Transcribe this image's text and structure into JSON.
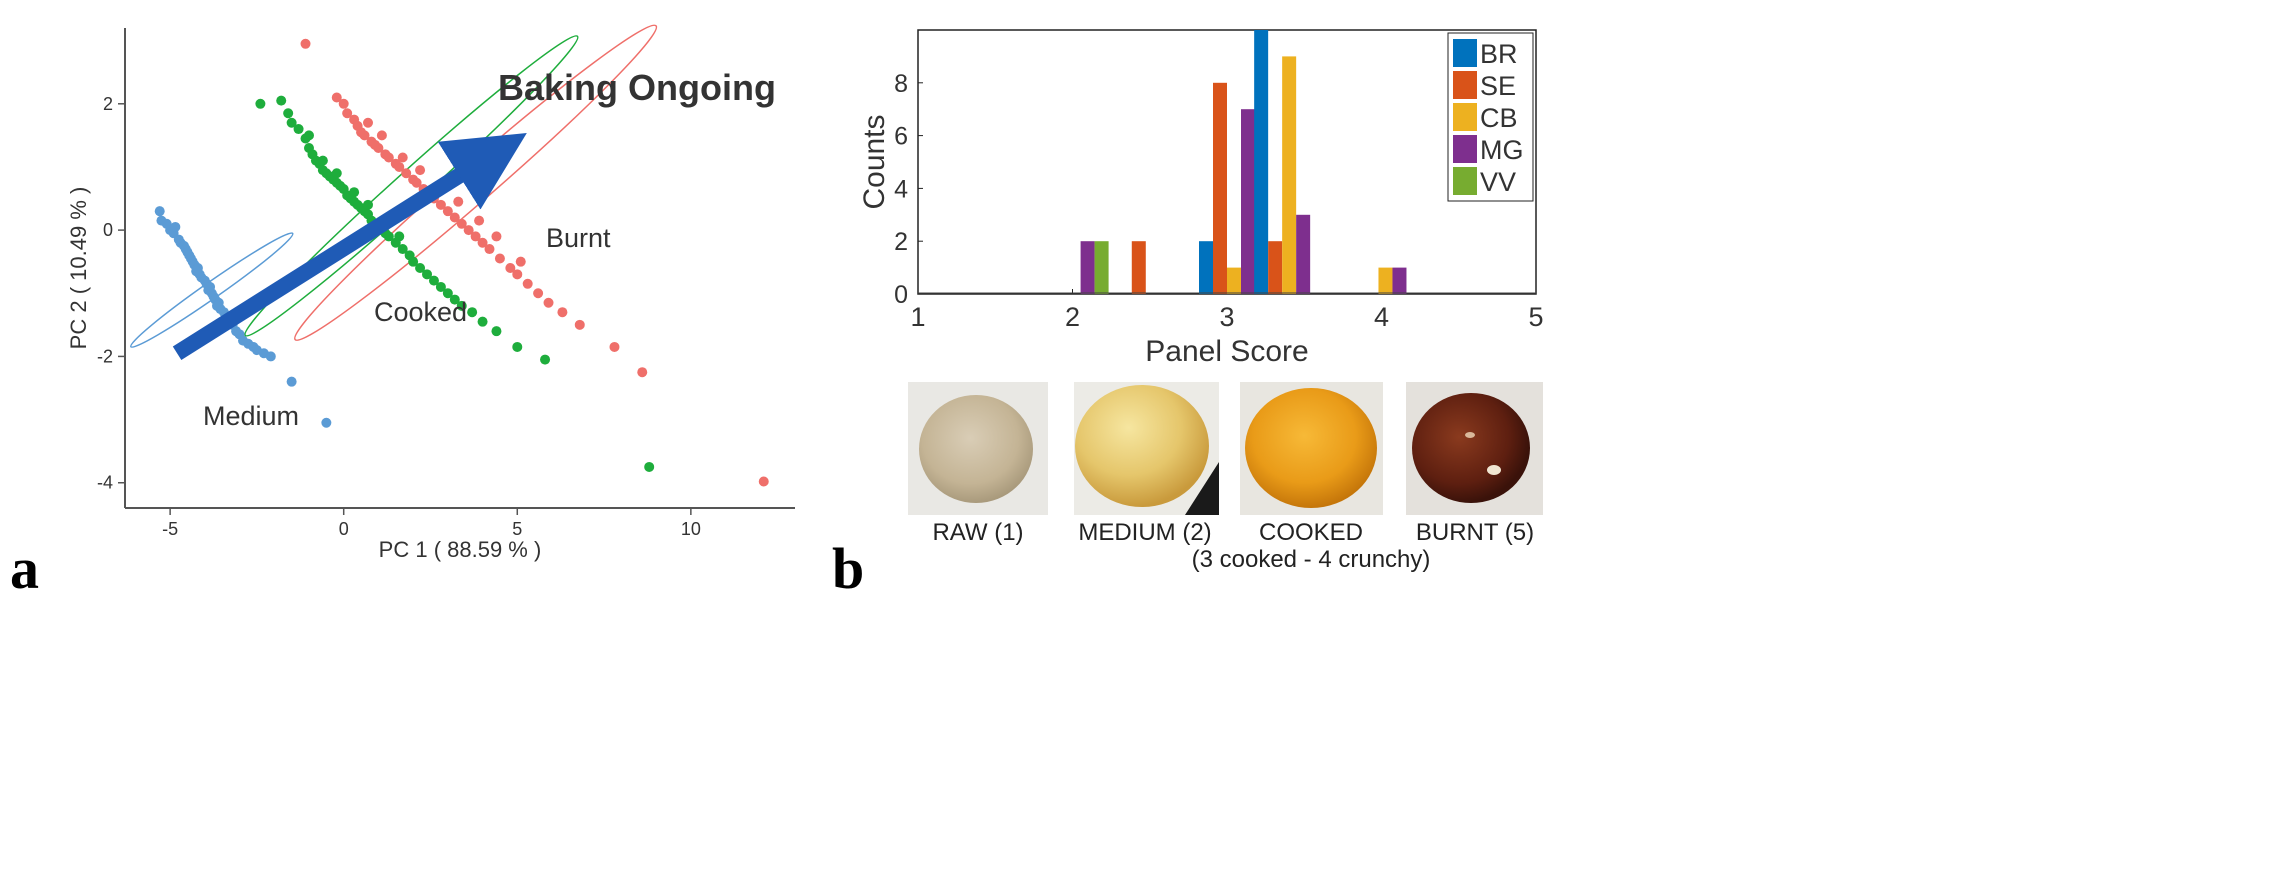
{
  "panels": {
    "a_label": "a",
    "b_label": "b"
  },
  "chart_data": [
    {
      "type": "scatter",
      "xlabel": "PC 1  ( 88.59 % )",
      "ylabel": "PC 2  ( 10.49 % )",
      "xlim": [
        -6.3,
        13.0
      ],
      "ylim": [
        -4.4,
        3.2
      ],
      "xticks": [
        -5,
        0,
        5,
        10
      ],
      "yticks": [
        -4,
        -2,
        0,
        2
      ],
      "grid": false,
      "annotation": "Baking Ongoing",
      "arrow": {
        "from": [
          -4.8,
          -1.95
        ],
        "to": [
          4.3,
          1.2
        ]
      },
      "colors": {
        "Medium": "#5b9bd5",
        "Cooked": "#1ead3c",
        "Burnt": "#ef6f6a",
        "arrow": "#1f5bb6",
        "annotation": "#1f5bb6"
      },
      "series": [
        {
          "name": "Medium",
          "ellipse": {
            "cx": -3.8,
            "cy": -0.95,
            "rx": 1.9,
            "ry": 0.16,
            "angle": -35
          },
          "points": [
            [
              -5.3,
              0.3
            ],
            [
              -5.25,
              0.15
            ],
            [
              -5.1,
              0.1
            ],
            [
              -5.0,
              0.0
            ],
            [
              -4.9,
              -0.05
            ],
            [
              -4.85,
              0.05
            ],
            [
              -4.75,
              -0.15
            ],
            [
              -4.7,
              -0.2
            ],
            [
              -4.6,
              -0.25
            ],
            [
              -4.55,
              -0.3
            ],
            [
              -4.5,
              -0.35
            ],
            [
              -4.4,
              -0.45
            ],
            [
              -4.35,
              -0.5
            ],
            [
              -4.3,
              -0.55
            ],
            [
              -4.2,
              -0.6
            ],
            [
              -4.15,
              -0.7
            ],
            [
              -4.1,
              -0.75
            ],
            [
              -4.0,
              -0.8
            ],
            [
              -3.95,
              -0.85
            ],
            [
              -3.9,
              -0.95
            ],
            [
              -3.8,
              -1.0
            ],
            [
              -3.75,
              -1.05
            ],
            [
              -3.7,
              -1.1
            ],
            [
              -3.6,
              -1.15
            ],
            [
              -3.55,
              -1.25
            ],
            [
              -3.45,
              -1.3
            ],
            [
              -3.4,
              -1.35
            ],
            [
              -3.3,
              -1.45
            ],
            [
              -3.2,
              -1.5
            ],
            [
              -3.1,
              -1.6
            ],
            [
              -3.0,
              -1.65
            ],
            [
              -2.9,
              -1.75
            ],
            [
              -2.75,
              -1.8
            ],
            [
              -2.6,
              -1.85
            ],
            [
              -2.5,
              -1.9
            ],
            [
              -2.3,
              -1.95
            ],
            [
              -2.1,
              -2.0
            ],
            [
              -4.45,
              -0.4
            ],
            [
              -4.25,
              -0.65
            ],
            [
              -3.85,
              -0.9
            ],
            [
              -3.65,
              -1.2
            ],
            [
              -3.35,
              -1.4
            ],
            [
              -1.5,
              -2.4
            ],
            [
              -0.5,
              -3.05
            ]
          ]
        },
        {
          "name": "Cooked",
          "ellipse": {
            "cx": 1.95,
            "cy": 0.7,
            "rx": 4.3,
            "ry": 0.3,
            "angle": -42
          },
          "points": [
            [
              -1.8,
              2.05
            ],
            [
              -1.6,
              1.85
            ],
            [
              -1.5,
              1.7
            ],
            [
              -1.3,
              1.6
            ],
            [
              -1.1,
              1.45
            ],
            [
              -1.0,
              1.3
            ],
            [
              -0.9,
              1.2
            ],
            [
              -0.8,
              1.1
            ],
            [
              -0.7,
              1.05
            ],
            [
              -0.6,
              0.95
            ],
            [
              -0.5,
              0.9
            ],
            [
              -0.4,
              0.85
            ],
            [
              -0.3,
              0.8
            ],
            [
              -0.2,
              0.75
            ],
            [
              -0.1,
              0.7
            ],
            [
              0.0,
              0.65
            ],
            [
              0.1,
              0.55
            ],
            [
              0.2,
              0.5
            ],
            [
              0.3,
              0.45
            ],
            [
              0.4,
              0.4
            ],
            [
              0.5,
              0.35
            ],
            [
              0.6,
              0.3
            ],
            [
              0.7,
              0.25
            ],
            [
              0.8,
              0.15
            ],
            [
              0.9,
              0.1
            ],
            [
              1.0,
              0.05
            ],
            [
              1.1,
              0.0
            ],
            [
              1.2,
              -0.05
            ],
            [
              1.3,
              -0.1
            ],
            [
              1.5,
              -0.2
            ],
            [
              1.7,
              -0.3
            ],
            [
              1.9,
              -0.4
            ],
            [
              2.0,
              -0.5
            ],
            [
              2.2,
              -0.6
            ],
            [
              2.4,
              -0.7
            ],
            [
              2.6,
              -0.8
            ],
            [
              2.8,
              -0.9
            ],
            [
              3.0,
              -1.0
            ],
            [
              3.2,
              -1.1
            ],
            [
              3.4,
              -1.2
            ],
            [
              3.7,
              -1.3
            ],
            [
              4.0,
              -1.45
            ],
            [
              4.4,
              -1.6
            ],
            [
              -1.0,
              1.5
            ],
            [
              -0.6,
              1.1
            ],
            [
              -0.2,
              0.9
            ],
            [
              0.3,
              0.6
            ],
            [
              0.7,
              0.4
            ],
            [
              1.2,
              0.15
            ],
            [
              1.6,
              -0.1
            ],
            [
              -2.4,
              2.0
            ],
            [
              5.0,
              -1.85
            ],
            [
              5.8,
              -2.05
            ],
            [
              8.8,
              -3.75
            ]
          ]
        },
        {
          "name": "Burnt",
          "ellipse": {
            "cx": 3.8,
            "cy": 0.75,
            "rx": 4.6,
            "ry": 0.36,
            "angle": -41
          },
          "points": [
            [
              -1.1,
              2.95
            ],
            [
              -0.2,
              2.1
            ],
            [
              0.0,
              2.0
            ],
            [
              0.1,
              1.85
            ],
            [
              0.3,
              1.75
            ],
            [
              0.4,
              1.65
            ],
            [
              0.5,
              1.55
            ],
            [
              0.6,
              1.5
            ],
            [
              0.8,
              1.4
            ],
            [
              0.9,
              1.35
            ],
            [
              1.0,
              1.3
            ],
            [
              1.2,
              1.2
            ],
            [
              1.3,
              1.15
            ],
            [
              1.5,
              1.05
            ],
            [
              1.6,
              1.0
            ],
            [
              1.8,
              0.9
            ],
            [
              2.0,
              0.8
            ],
            [
              2.1,
              0.75
            ],
            [
              2.3,
              0.65
            ],
            [
              2.5,
              0.55
            ],
            [
              2.6,
              0.5
            ],
            [
              2.8,
              0.4
            ],
            [
              3.0,
              0.3
            ],
            [
              3.2,
              0.2
            ],
            [
              3.4,
              0.1
            ],
            [
              3.6,
              0.0
            ],
            [
              3.8,
              -0.1
            ],
            [
              4.0,
              -0.2
            ],
            [
              4.2,
              -0.3
            ],
            [
              4.5,
              -0.45
            ],
            [
              4.8,
              -0.6
            ],
            [
              5.0,
              -0.7
            ],
            [
              5.3,
              -0.85
            ],
            [
              5.6,
              -1.0
            ],
            [
              5.9,
              -1.15
            ],
            [
              6.3,
              -1.3
            ],
            [
              6.8,
              -1.5
            ],
            [
              0.7,
              1.7
            ],
            [
              1.1,
              1.5
            ],
            [
              1.7,
              1.15
            ],
            [
              2.2,
              0.95
            ],
            [
              2.7,
              0.7
            ],
            [
              3.3,
              0.45
            ],
            [
              3.9,
              0.15
            ],
            [
              4.4,
              -0.1
            ],
            [
              5.1,
              -0.5
            ],
            [
              7.8,
              -1.85
            ],
            [
              8.6,
              -2.25
            ],
            [
              12.1,
              -3.98
            ]
          ]
        }
      ]
    },
    {
      "type": "bar",
      "xlabel": "Panel Score",
      "ylabel": "Counts",
      "xlim": [
        1,
        5
      ],
      "ylim": [
        0,
        10
      ],
      "xticks": [
        1,
        2,
        3,
        4,
        5
      ],
      "yticks": [
        0,
        2,
        4,
        6,
        8
      ],
      "grid": false,
      "legend_position": "top-right",
      "categories": [
        2.143,
        2.429,
        3.0,
        3.357,
        3.571,
        4.071
      ],
      "series": [
        {
          "name": "BR",
          "color": "#0072bd",
          "values": [
            0,
            0,
            2,
            10,
            0,
            0
          ]
        },
        {
          "name": "SE",
          "color": "#d95319",
          "values": [
            0,
            2,
            8,
            2,
            0,
            0
          ]
        },
        {
          "name": "CB",
          "color": "#edb120",
          "values": [
            0,
            0,
            1,
            9,
            0,
            1
          ]
        },
        {
          "name": "MG",
          "color": "#7e2f8e",
          "values": [
            2,
            0,
            7,
            3,
            0,
            1
          ]
        },
        {
          "name": "VV",
          "color": "#77ac30",
          "values": [
            2,
            0,
            0,
            0,
            0,
            0
          ]
        }
      ]
    }
  ],
  "photos": [
    {
      "caption": "RAW (1)",
      "subcaption": "",
      "icon": "raw-dough-ball-photo"
    },
    {
      "caption": "MEDIUM (2)",
      "subcaption": "",
      "icon": "medium-baked-ball-photo"
    },
    {
      "caption": "COOKED",
      "subcaption": "(3 cooked - 4 crunchy)",
      "icon": "cooked-ball-photo"
    },
    {
      "caption": "BURNT (5)",
      "subcaption": "",
      "icon": "burnt-ball-photo"
    }
  ]
}
